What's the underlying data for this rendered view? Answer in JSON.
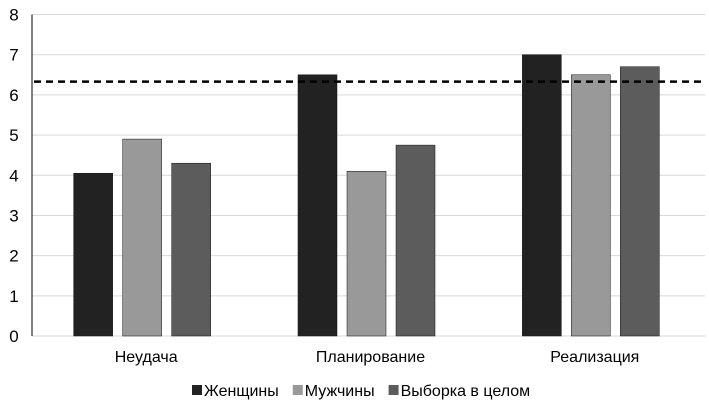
{
  "chart_data": {
    "type": "bar",
    "title": "",
    "xlabel": "",
    "ylabel": "",
    "ylim": [
      0,
      8
    ],
    "yticks": [
      "0",
      "1",
      "2",
      "3",
      "4",
      "5",
      "6",
      "7",
      "8"
    ],
    "grid": true,
    "legend_position": "bottom",
    "categories": [
      "Неудача",
      "Планирование",
      "Реализация"
    ],
    "series": [
      {
        "name": "Женщины",
        "color": "#222222",
        "values": [
          4.05,
          6.5,
          7.0
        ]
      },
      {
        "name": "Мужчины",
        "color": "#999999",
        "values": [
          4.9,
          4.1,
          6.5
        ]
      },
      {
        "name": "Выборка в целом",
        "color": "#5c5c5c",
        "values": [
          4.3,
          4.75,
          6.7
        ]
      }
    ],
    "reference_line": {
      "value": 6.33,
      "style": "dashed",
      "color": "#000000"
    }
  }
}
